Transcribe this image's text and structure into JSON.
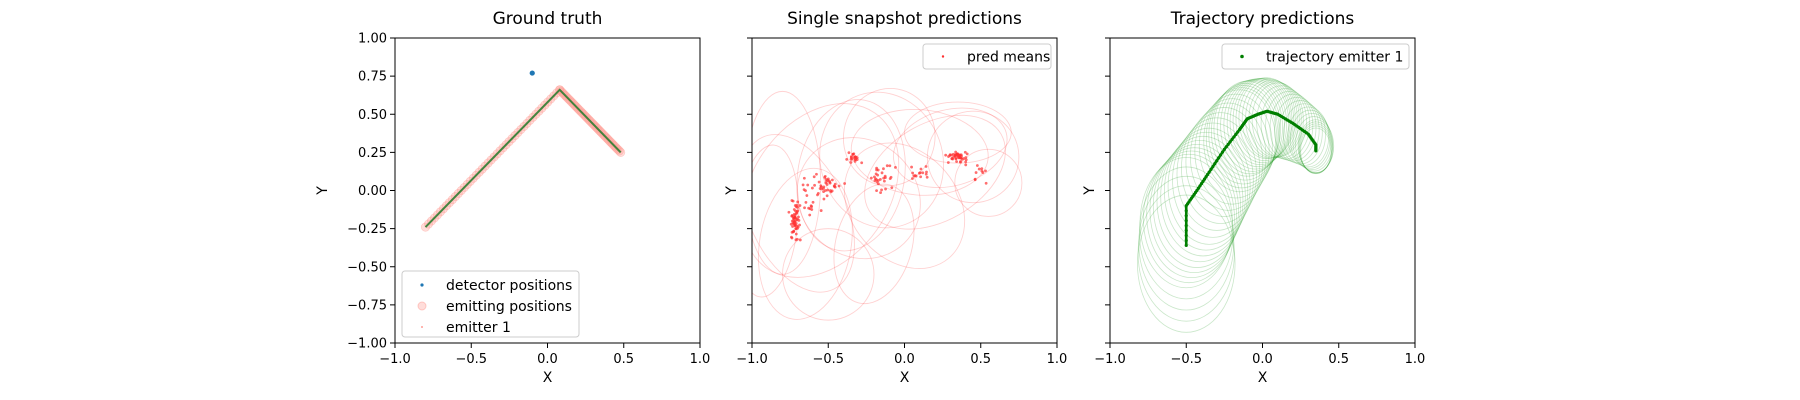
{
  "chart_data": [
    {
      "type": "scatter",
      "title": "Ground truth",
      "xlabel": "X",
      "ylabel": "Y",
      "xlim": [
        -1.0,
        1.0
      ],
      "ylim": [
        -1.0,
        1.0
      ],
      "xticks": [
        "−1.0",
        "−0.5",
        "0.0",
        "0.5",
        "1.0"
      ],
      "yticks": [
        "−1.00",
        "−0.75",
        "−0.50",
        "−0.25",
        "0.00",
        "0.25",
        "0.50",
        "0.75",
        "1.00"
      ],
      "legend_position": "lower-left",
      "series": [
        {
          "name": "detector positions",
          "color": "#1f77b4",
          "points": [
            [
              -0.1,
              0.77
            ]
          ]
        },
        {
          "name": "emitting positions",
          "color": "#ff9e96",
          "path": [
            [
              -0.8,
              -0.24
            ],
            [
              0.08,
              0.66
            ],
            [
              0.48,
              0.25
            ]
          ]
        },
        {
          "name": "emitter 1",
          "color": "#2e7d32",
          "path": [
            [
              -0.8,
              -0.24
            ],
            [
              0.08,
              0.66
            ],
            [
              0.48,
              0.25
            ]
          ]
        }
      ]
    },
    {
      "type": "scatter",
      "title": "Single snapshot predictions",
      "xlabel": "X",
      "ylabel": "Y",
      "xlim": [
        -1.0,
        1.0
      ],
      "ylim": [
        -1.0,
        1.0
      ],
      "xticks": [
        "−1.0",
        "−0.5",
        "0.0",
        "0.5",
        "1.0"
      ],
      "legend_position": "top-right",
      "series": [
        {
          "name": "pred means",
          "color": "#ff3030"
        }
      ]
    },
    {
      "type": "line",
      "title": "Trajectory predictions",
      "xlabel": "X",
      "ylabel": "Y",
      "xlim": [
        -1.0,
        1.0
      ],
      "ylim": [
        -1.0,
        1.0
      ],
      "xticks": [
        "−1.0",
        "−0.5",
        "0.0",
        "0.5",
        "1.0"
      ],
      "legend_position": "top-right",
      "series": [
        {
          "name": "trajectory emitter 1",
          "color": "#007f00",
          "path": [
            [
              -0.5,
              -0.36
            ],
            [
              -0.5,
              -0.1
            ],
            [
              -0.43,
              0.0
            ],
            [
              -0.35,
              0.12
            ],
            [
              -0.25,
              0.27
            ],
            [
              -0.15,
              0.4
            ],
            [
              -0.1,
              0.47
            ],
            [
              -0.03,
              0.5
            ],
            [
              0.03,
              0.52
            ],
            [
              0.1,
              0.5
            ],
            [
              0.2,
              0.44
            ],
            [
              0.3,
              0.37
            ],
            [
              0.35,
              0.3
            ],
            [
              0.35,
              0.26
            ]
          ]
        }
      ]
    }
  ]
}
